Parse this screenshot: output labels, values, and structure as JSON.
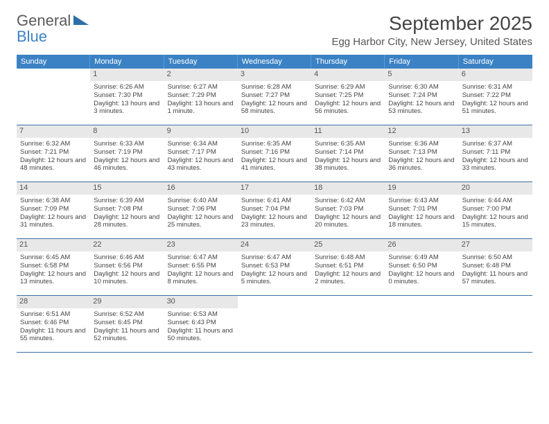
{
  "logo": {
    "line1": "General",
    "line2": "Blue"
  },
  "title": "September 2025",
  "location": "Egg Harbor City, New Jersey, United States",
  "colors": {
    "header_bg": "#3b82c4",
    "header_text": "#ffffff",
    "daynum_bg": "#e8e8e8",
    "cell_border": "#3b6fa0",
    "text": "#444444"
  },
  "weekdays": [
    "Sunday",
    "Monday",
    "Tuesday",
    "Wednesday",
    "Thursday",
    "Friday",
    "Saturday"
  ],
  "weeks": [
    [
      null,
      {
        "n": "1",
        "sr": "Sunrise: 6:26 AM",
        "ss": "Sunset: 7:30 PM",
        "dl": "Daylight: 13 hours and 3 minutes."
      },
      {
        "n": "2",
        "sr": "Sunrise: 6:27 AM",
        "ss": "Sunset: 7:29 PM",
        "dl": "Daylight: 13 hours and 1 minute."
      },
      {
        "n": "3",
        "sr": "Sunrise: 6:28 AM",
        "ss": "Sunset: 7:27 PM",
        "dl": "Daylight: 12 hours and 58 minutes."
      },
      {
        "n": "4",
        "sr": "Sunrise: 6:29 AM",
        "ss": "Sunset: 7:25 PM",
        "dl": "Daylight: 12 hours and 56 minutes."
      },
      {
        "n": "5",
        "sr": "Sunrise: 6:30 AM",
        "ss": "Sunset: 7:24 PM",
        "dl": "Daylight: 12 hours and 53 minutes."
      },
      {
        "n": "6",
        "sr": "Sunrise: 6:31 AM",
        "ss": "Sunset: 7:22 PM",
        "dl": "Daylight: 12 hours and 51 minutes."
      }
    ],
    [
      {
        "n": "7",
        "sr": "Sunrise: 6:32 AM",
        "ss": "Sunset: 7:21 PM",
        "dl": "Daylight: 12 hours and 48 minutes."
      },
      {
        "n": "8",
        "sr": "Sunrise: 6:33 AM",
        "ss": "Sunset: 7:19 PM",
        "dl": "Daylight: 12 hours and 46 minutes."
      },
      {
        "n": "9",
        "sr": "Sunrise: 6:34 AM",
        "ss": "Sunset: 7:17 PM",
        "dl": "Daylight: 12 hours and 43 minutes."
      },
      {
        "n": "10",
        "sr": "Sunrise: 6:35 AM",
        "ss": "Sunset: 7:16 PM",
        "dl": "Daylight: 12 hours and 41 minutes."
      },
      {
        "n": "11",
        "sr": "Sunrise: 6:35 AM",
        "ss": "Sunset: 7:14 PM",
        "dl": "Daylight: 12 hours and 38 minutes."
      },
      {
        "n": "12",
        "sr": "Sunrise: 6:36 AM",
        "ss": "Sunset: 7:13 PM",
        "dl": "Daylight: 12 hours and 36 minutes."
      },
      {
        "n": "13",
        "sr": "Sunrise: 6:37 AM",
        "ss": "Sunset: 7:11 PM",
        "dl": "Daylight: 12 hours and 33 minutes."
      }
    ],
    [
      {
        "n": "14",
        "sr": "Sunrise: 6:38 AM",
        "ss": "Sunset: 7:09 PM",
        "dl": "Daylight: 12 hours and 31 minutes."
      },
      {
        "n": "15",
        "sr": "Sunrise: 6:39 AM",
        "ss": "Sunset: 7:08 PM",
        "dl": "Daylight: 12 hours and 28 minutes."
      },
      {
        "n": "16",
        "sr": "Sunrise: 6:40 AM",
        "ss": "Sunset: 7:06 PM",
        "dl": "Daylight: 12 hours and 25 minutes."
      },
      {
        "n": "17",
        "sr": "Sunrise: 6:41 AM",
        "ss": "Sunset: 7:04 PM",
        "dl": "Daylight: 12 hours and 23 minutes."
      },
      {
        "n": "18",
        "sr": "Sunrise: 6:42 AM",
        "ss": "Sunset: 7:03 PM",
        "dl": "Daylight: 12 hours and 20 minutes."
      },
      {
        "n": "19",
        "sr": "Sunrise: 6:43 AM",
        "ss": "Sunset: 7:01 PM",
        "dl": "Daylight: 12 hours and 18 minutes."
      },
      {
        "n": "20",
        "sr": "Sunrise: 6:44 AM",
        "ss": "Sunset: 7:00 PM",
        "dl": "Daylight: 12 hours and 15 minutes."
      }
    ],
    [
      {
        "n": "21",
        "sr": "Sunrise: 6:45 AM",
        "ss": "Sunset: 6:58 PM",
        "dl": "Daylight: 12 hours and 13 minutes."
      },
      {
        "n": "22",
        "sr": "Sunrise: 6:46 AM",
        "ss": "Sunset: 6:56 PM",
        "dl": "Daylight: 12 hours and 10 minutes."
      },
      {
        "n": "23",
        "sr": "Sunrise: 6:47 AM",
        "ss": "Sunset: 6:55 PM",
        "dl": "Daylight: 12 hours and 8 minutes."
      },
      {
        "n": "24",
        "sr": "Sunrise: 6:47 AM",
        "ss": "Sunset: 6:53 PM",
        "dl": "Daylight: 12 hours and 5 minutes."
      },
      {
        "n": "25",
        "sr": "Sunrise: 6:48 AM",
        "ss": "Sunset: 6:51 PM",
        "dl": "Daylight: 12 hours and 2 minutes."
      },
      {
        "n": "26",
        "sr": "Sunrise: 6:49 AM",
        "ss": "Sunset: 6:50 PM",
        "dl": "Daylight: 12 hours and 0 minutes."
      },
      {
        "n": "27",
        "sr": "Sunrise: 6:50 AM",
        "ss": "Sunset: 6:48 PM",
        "dl": "Daylight: 11 hours and 57 minutes."
      }
    ],
    [
      {
        "n": "28",
        "sr": "Sunrise: 6:51 AM",
        "ss": "Sunset: 6:46 PM",
        "dl": "Daylight: 11 hours and 55 minutes."
      },
      {
        "n": "29",
        "sr": "Sunrise: 6:52 AM",
        "ss": "Sunset: 6:45 PM",
        "dl": "Daylight: 11 hours and 52 minutes."
      },
      {
        "n": "30",
        "sr": "Sunrise: 6:53 AM",
        "ss": "Sunset: 6:43 PM",
        "dl": "Daylight: 11 hours and 50 minutes."
      },
      null,
      null,
      null,
      null
    ]
  ]
}
